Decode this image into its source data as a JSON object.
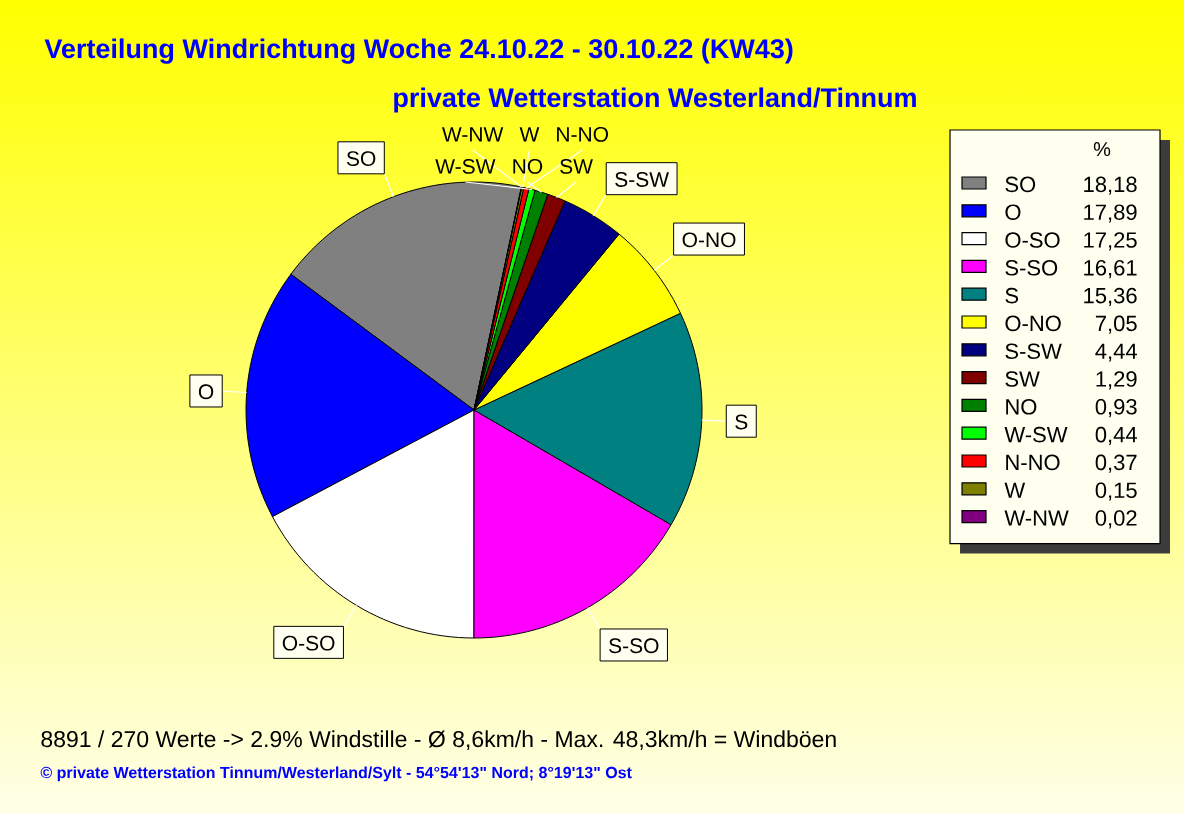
{
  "chart_data": {
    "type": "pie",
    "title": "Verteilung Windrichtung Woche 24.10.22 - 30.10.22 (KW43)",
    "subtitle": "private Wetterstation Westerland/Tinnum",
    "legend_title": "%",
    "categories": [
      "SO",
      "O",
      "O-SO",
      "S-SO",
      "S",
      "O-NO",
      "S-SW",
      "SW",
      "NO",
      "W-SW",
      "N-NO",
      "W",
      "W-NW"
    ],
    "values": [
      18.18,
      17.89,
      17.25,
      16.61,
      15.36,
      7.05,
      4.44,
      1.29,
      0.93,
      0.44,
      0.37,
      0.15,
      0.02
    ],
    "colors": [
      "#808080",
      "#0000ff",
      "#ffffff",
      "#ff00ff",
      "#008080",
      "#ffff00",
      "#000080",
      "#800000",
      "#008000",
      "#00ff00",
      "#ff0000",
      "#808000",
      "#800080"
    ],
    "value_labels": [
      "18,18",
      "17,89",
      "17,25",
      "16,61",
      "15,36",
      "7,05",
      "4,44",
      "1,29",
      "0,93",
      "0,44",
      "0,37",
      "0,15",
      "0,02"
    ],
    "legend": "right",
    "annotations": [
      "8891 / 270 Werte -> 2.9% Windstille - Ø 8,6km/h - Max. 48,3km/h = Windböen",
      "© private Wetterstation Tinnum/Westerland/Sylt - 54°54'13\" Nord; 8°19'13\" Ost"
    ]
  }
}
